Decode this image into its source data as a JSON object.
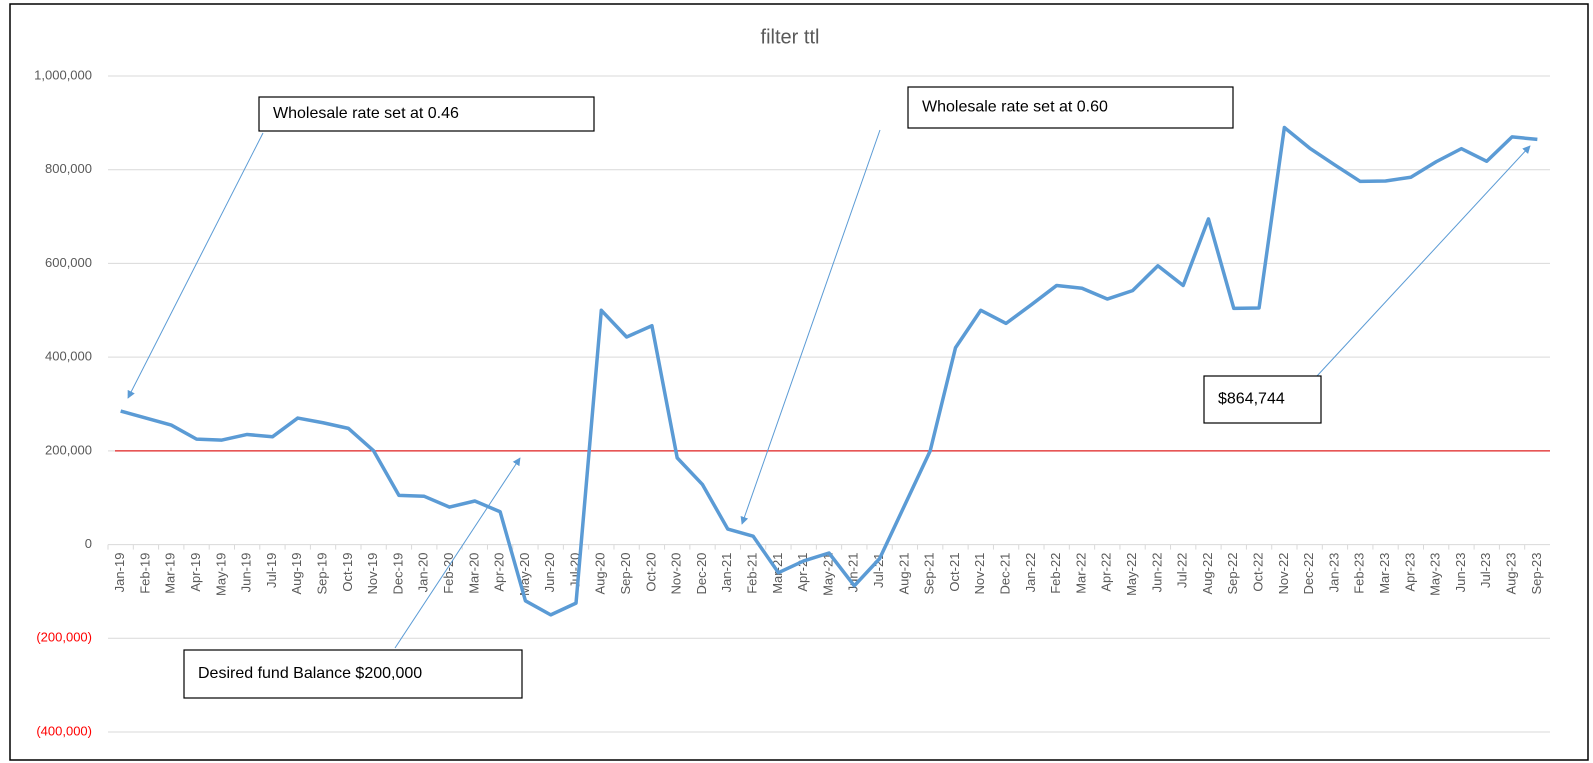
{
  "chart_data": {
    "type": "line",
    "title": "filter ttl",
    "categories": [
      "Jan-19",
      "Feb-19",
      "Mar-19",
      "Apr-19",
      "May-19",
      "Jun-19",
      "Jul-19",
      "Aug-19",
      "Sep-19",
      "Oct-19",
      "Nov-19",
      "Dec-19",
      "Jan-20",
      "Feb-20",
      "Mar-20",
      "Apr-20",
      "May-20",
      "Jun-20",
      "Jul-20",
      "Aug-20",
      "Sep-20",
      "Oct-20",
      "Nov-20",
      "Dec-20",
      "Jan-21",
      "Feb-21",
      "Mar-21",
      "Apr-21",
      "May-21",
      "Jun-21",
      "Jul-21",
      "Aug-21",
      "Sep-21",
      "Oct-21",
      "Nov-21",
      "Dec-21",
      "Jan-22",
      "Feb-22",
      "Mar-22",
      "Apr-22",
      "May-22",
      "Jun-22",
      "Jul-22",
      "Aug-22",
      "Sep-22",
      "Oct-22",
      "Nov-22",
      "Dec-22",
      "Jan-23",
      "Feb-23",
      "Mar-23",
      "Apr-23",
      "May-23",
      "Jun-23",
      "Jul-23",
      "Aug-23",
      "Sep-23"
    ],
    "values": [
      285000,
      270000,
      255000,
      225000,
      223000,
      235000,
      230000,
      270000,
      260000,
      248000,
      200000,
      105000,
      103000,
      80000,
      93000,
      70000,
      -120000,
      -150000,
      -125000,
      500000,
      443000,
      467000,
      185000,
      128000,
      33000,
      18000,
      -60000,
      -35000,
      -18000,
      -88000,
      -30000,
      85000,
      200000,
      420000,
      500000,
      472000,
      512000,
      553000,
      547000,
      524000,
      542000,
      595000,
      553000,
      695000,
      504000,
      505000,
      890000,
      846000,
      810000,
      775000,
      776000,
      784000,
      817000,
      845000,
      818000,
      870000,
      864744
    ],
    "color": "#5b9bd5",
    "ylim": [
      -400000,
      1000000
    ],
    "yticks": [
      {
        "value": -400000,
        "label": "(400,000)"
      },
      {
        "value": -200000,
        "label": "(200,000)"
      },
      0,
      {
        "value": 200000,
        "label": "200,000"
      },
      {
        "value": 400000,
        "label": "400,000"
      },
      {
        "value": 600000,
        "label": "600,000"
      },
      {
        "value": 800000,
        "label": "800,000"
      },
      {
        "value": 1000000,
        "label": "1,000,000"
      }
    ],
    "negative_tick_color": "#ff0000",
    "grid": true,
    "reference_line": {
      "value": 200000,
      "color": "#e02020"
    },
    "annotations": [
      "Wholesale rate set at 0.46",
      "Wholesale rate set at 0.60",
      "$864,744",
      "Desired fund Balance $200,000"
    ]
  }
}
